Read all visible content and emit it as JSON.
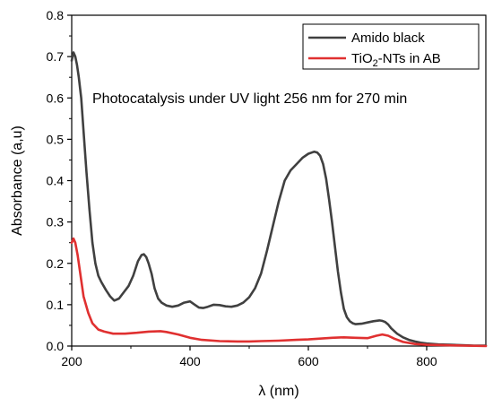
{
  "chart_data": {
    "type": "line",
    "title": "",
    "xlabel": "λ (nm)",
    "ylabel": "Absorbance (a,u)",
    "xlim": [
      200,
      900
    ],
    "ylim": [
      0,
      0.8
    ],
    "xticks": [
      200,
      400,
      600,
      800
    ],
    "yticks": [
      0.0,
      0.1,
      0.2,
      0.3,
      0.4,
      0.5,
      0.6,
      0.7,
      0.8
    ],
    "xtick_labels": [
      "200",
      "400",
      "600",
      "800"
    ],
    "ytick_labels": [
      "0.0",
      "0.1",
      "0.2",
      "0.3",
      "0.4",
      "0.5",
      "0.6",
      "0.7",
      "0.8"
    ],
    "grid": false,
    "legend_position": "top-right",
    "annotation": "Photocatalysis under UV light 256 nm for 270 min",
    "legend": [
      {
        "name": "Amido black",
        "color": "#404040"
      },
      {
        "name_main": "TiO",
        "name_sub": "2",
        "name_rest": "-NTs in AB",
        "color": "#e03030"
      }
    ],
    "series": [
      {
        "name": "Amido black",
        "color": "#404040",
        "x": [
          200,
          203,
          206,
          209,
          212,
          216,
          220,
          225,
          230,
          235,
          240,
          245,
          250,
          258,
          265,
          272,
          280,
          288,
          296,
          304,
          312,
          318,
          322,
          326,
          330,
          335,
          340,
          346,
          352,
          360,
          370,
          380,
          390,
          400,
          408,
          415,
          422,
          430,
          440,
          450,
          460,
          470,
          480,
          490,
          500,
          510,
          520,
          530,
          540,
          550,
          560,
          570,
          580,
          590,
          600,
          610,
          615,
          620,
          625,
          630,
          635,
          640,
          645,
          650,
          655,
          660,
          665,
          670,
          675,
          680,
          690,
          700,
          710,
          720,
          725,
          730,
          735,
          740,
          750,
          760,
          770,
          780,
          790,
          800,
          820,
          840,
          860,
          880,
          900
        ],
        "y": [
          0.69,
          0.71,
          0.7,
          0.68,
          0.65,
          0.6,
          0.52,
          0.42,
          0.33,
          0.25,
          0.2,
          0.17,
          0.155,
          0.135,
          0.12,
          0.11,
          0.115,
          0.13,
          0.145,
          0.17,
          0.205,
          0.22,
          0.222,
          0.215,
          0.2,
          0.175,
          0.14,
          0.115,
          0.105,
          0.098,
          0.095,
          0.098,
          0.105,
          0.108,
          0.1,
          0.093,
          0.092,
          0.095,
          0.1,
          0.099,
          0.096,
          0.095,
          0.098,
          0.105,
          0.118,
          0.14,
          0.175,
          0.23,
          0.29,
          0.35,
          0.4,
          0.425,
          0.44,
          0.455,
          0.465,
          0.47,
          0.468,
          0.46,
          0.44,
          0.405,
          0.355,
          0.3,
          0.24,
          0.18,
          0.13,
          0.09,
          0.07,
          0.06,
          0.055,
          0.053,
          0.054,
          0.057,
          0.06,
          0.062,
          0.061,
          0.058,
          0.052,
          0.043,
          0.03,
          0.021,
          0.015,
          0.011,
          0.008,
          0.006,
          0.004,
          0.003,
          0.002,
          0.001,
          0.001
        ]
      },
      {
        "name": "TiO2-NTs in AB",
        "color": "#e03030",
        "x": [
          200,
          203,
          206,
          210,
          215,
          220,
          228,
          235,
          245,
          255,
          270,
          290,
          310,
          330,
          350,
          360,
          380,
          400,
          420,
          450,
          480,
          500,
          520,
          550,
          580,
          600,
          620,
          640,
          660,
          680,
          700,
          715,
          725,
          735,
          745,
          760,
          780,
          800,
          830,
          860,
          900
        ],
        "y": [
          0.25,
          0.26,
          0.25,
          0.22,
          0.17,
          0.12,
          0.08,
          0.055,
          0.04,
          0.035,
          0.03,
          0.03,
          0.032,
          0.035,
          0.036,
          0.034,
          0.028,
          0.02,
          0.015,
          0.012,
          0.011,
          0.011,
          0.012,
          0.013,
          0.015,
          0.016,
          0.018,
          0.02,
          0.021,
          0.02,
          0.019,
          0.025,
          0.028,
          0.025,
          0.018,
          0.01,
          0.005,
          0.003,
          0.002,
          0.001,
          0.0
        ]
      }
    ]
  }
}
